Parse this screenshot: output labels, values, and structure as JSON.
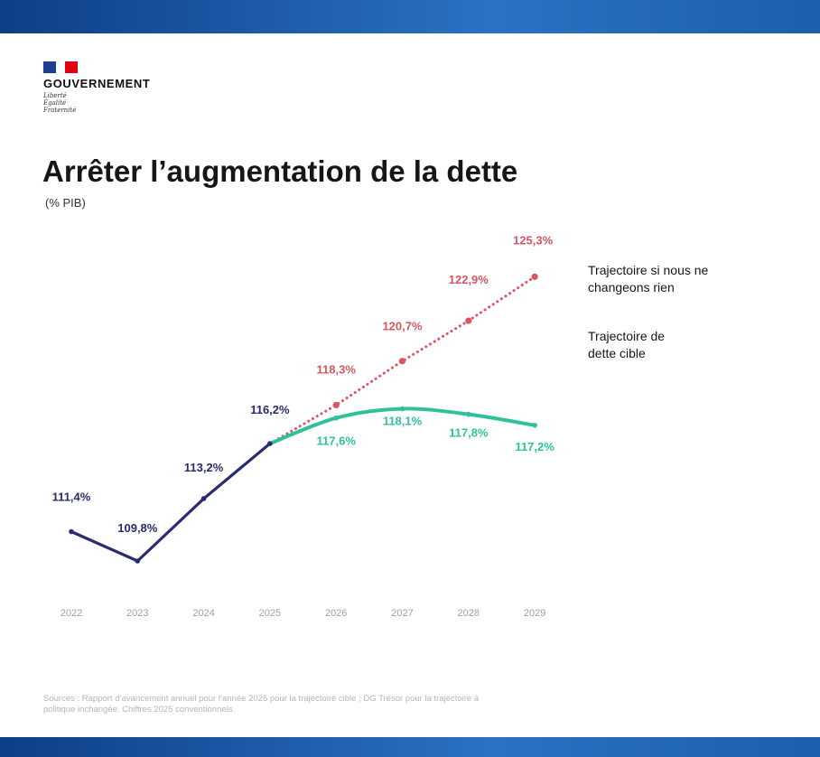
{
  "header": {
    "gov_name": "GOUVERNEMENT",
    "motto": [
      "Liberté",
      "Égalité",
      "Fraternité"
    ],
    "title": "Arrêter l’augmentation de la dette",
    "unit": "(% PIB)"
  },
  "legend": {
    "no_change": "Trajectoire si nous ne changeons rien",
    "target": "Trajectoire de dette cible"
  },
  "sources": "Sources : Rapport d’avancement annuel pour l’année 2025 pour la trajectoire cible ; DG Trésor pour la trajectoire à politique inchangée. Chiffres 2025 conventionnels.",
  "colors": {
    "historical": "#262c6f",
    "target": "#2fc29a",
    "no_change": "#d95563",
    "axis_text": "#a0a0a0"
  },
  "chart_data": {
    "type": "line",
    "title": "Arrêter l’augmentation de la dette",
    "ylabel": "(% PIB)",
    "x": [
      "2022",
      "2023",
      "2024",
      "2025",
      "2026",
      "2027",
      "2028",
      "2029"
    ],
    "ylim": [
      108,
      127
    ],
    "grid": false,
    "legend_position": "right",
    "series": [
      {
        "key": "historical",
        "style": "solid",
        "x": [
          "2022",
          "2023",
          "2024",
          "2025"
        ],
        "values": [
          111.4,
          109.8,
          113.2,
          116.2
        ],
        "labels": [
          "111,4%",
          "109,8%",
          "113,2%",
          "116,2%"
        ]
      },
      {
        "key": "target",
        "name": "Trajectoire de dette cible",
        "style": "solid",
        "x": [
          "2025",
          "2026",
          "2027",
          "2028",
          "2029"
        ],
        "values": [
          116.2,
          117.6,
          118.1,
          117.8,
          117.2
        ],
        "labels": [
          "",
          "117,6%",
          "118,1%",
          "117,8%",
          "117,2%"
        ]
      },
      {
        "key": "no_change",
        "name": "Trajectoire si nous ne changeons rien",
        "style": "dotted",
        "x": [
          "2025",
          "2026",
          "2027",
          "2028",
          "2029"
        ],
        "values": [
          116.2,
          118.3,
          120.7,
          122.9,
          125.3
        ],
        "labels": [
          "",
          "118,3%",
          "120,7%",
          "122,9%",
          "125,3%"
        ]
      }
    ]
  }
}
